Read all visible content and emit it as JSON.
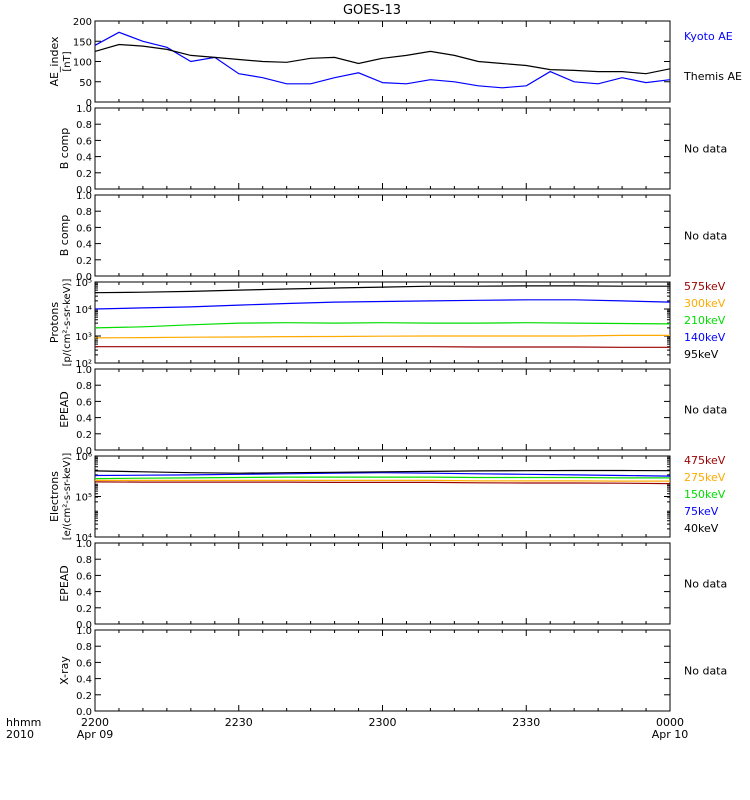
{
  "title": "GOES-13",
  "time_axis": {
    "ticks": [
      "2200",
      "2230",
      "2300",
      "2330",
      "0000"
    ],
    "date_left": "Apr 09",
    "date_right": "Apr 10",
    "unit_label": "hhmm",
    "year_label": "2010"
  },
  "colors": {
    "black": "#000000",
    "blue": "#0000ff",
    "green": "#00dd00",
    "orange": "#ffaa00",
    "darkred": "#990000"
  },
  "no_data_label": "No data",
  "chart_data": [
    {
      "type": "line",
      "panel": "ae",
      "ylabel": "AE_index\n[nT]",
      "ylim": [
        0,
        200
      ],
      "yticks": [
        "0",
        "50",
        "100",
        "150",
        "200"
      ],
      "x_minutes": [
        0,
        5,
        10,
        15,
        20,
        25,
        30,
        35,
        40,
        45,
        50,
        55,
        60,
        65,
        70,
        75,
        80,
        85,
        90,
        95,
        100,
        105,
        110,
        115,
        120
      ],
      "series": [
        {
          "name": "Kyoto AE",
          "color": "blue",
          "values": [
            140,
            172,
            150,
            135,
            100,
            110,
            70,
            60,
            45,
            45,
            60,
            72,
            48,
            45,
            55,
            50,
            40,
            35,
            40,
            75,
            50,
            45,
            60,
            48,
            55
          ]
        },
        {
          "name": "Themis AE",
          "color": "black",
          "values": [
            125,
            142,
            138,
            130,
            115,
            110,
            105,
            100,
            98,
            108,
            110,
            95,
            108,
            115,
            125,
            115,
            100,
            95,
            90,
            80,
            78,
            75,
            75,
            70,
            82
          ]
        }
      ]
    },
    {
      "type": "line",
      "panel": "bcomp1",
      "ylabel": "B comp",
      "ylim": [
        0,
        1
      ],
      "yticks": [
        "0.0",
        "0.2",
        "0.4",
        "0.6",
        "0.8",
        "1.0"
      ],
      "no_data": true
    },
    {
      "type": "line",
      "panel": "bcomp2",
      "ylabel": "B comp",
      "ylim": [
        0,
        1
      ],
      "yticks": [
        "0.0",
        "0.2",
        "0.4",
        "0.6",
        "0.8",
        "1.0"
      ],
      "no_data": true
    },
    {
      "type": "line",
      "panel": "protons",
      "scale": "log",
      "ylabel": "Protons\n[p/(cm²-s-sr-keV)]",
      "ylim": [
        100,
        100000
      ],
      "yticks": [
        "10²",
        "10³",
        "10⁴",
        "10⁵"
      ],
      "x_minutes": [
        0,
        10,
        20,
        30,
        40,
        50,
        60,
        70,
        80,
        90,
        100,
        110,
        120
      ],
      "series": [
        {
          "name": "575keV",
          "color": "darkred",
          "values": [
            400,
            400,
            400,
            400,
            400,
            400,
            400,
            400,
            390,
            390,
            390,
            380,
            380
          ]
        },
        {
          "name": "300keV",
          "color": "orange",
          "values": [
            850,
            870,
            900,
            920,
            950,
            960,
            980,
            1000,
            1000,
            1000,
            1000,
            1050,
            1050
          ]
        },
        {
          "name": "210keV",
          "color": "green",
          "values": [
            2000,
            2200,
            2600,
            3000,
            3100,
            3000,
            3100,
            3000,
            3000,
            3100,
            3000,
            2900,
            2800
          ]
        },
        {
          "name": "140keV",
          "color": "blue",
          "values": [
            10000,
            11000,
            12000,
            14000,
            16000,
            18000,
            19000,
            20000,
            21000,
            22000,
            22000,
            20000,
            18000
          ]
        },
        {
          "name": "95keV",
          "color": "black",
          "values": [
            40000,
            42000,
            45000,
            50000,
            55000,
            60000,
            65000,
            70000,
            70000,
            72000,
            72000,
            70000,
            70000
          ]
        }
      ]
    },
    {
      "type": "line",
      "panel": "epead1",
      "ylabel": "EPEAD",
      "ylim": [
        0,
        1
      ],
      "yticks": [
        "0.0",
        "0.2",
        "0.4",
        "0.6",
        "0.8",
        "1.0"
      ],
      "no_data": true
    },
    {
      "type": "line",
      "panel": "electrons",
      "scale": "log",
      "ylabel": "Electrons\n[e/(cm²-s-sr-keV)]",
      "ylim": [
        1000,
        1000000
      ],
      "yticks": [
        "10⁴",
        "10⁵",
        "10⁶"
      ],
      "x_minutes": [
        0,
        10,
        20,
        30,
        40,
        50,
        60,
        70,
        80,
        90,
        100,
        110,
        120
      ],
      "series": [
        {
          "name": "475keV",
          "color": "darkred",
          "values": [
            110000,
            108000,
            108000,
            108000,
            108000,
            105000,
            105000,
            105000,
            102000,
            100000,
            100000,
            98000,
            95000
          ]
        },
        {
          "name": "275keV",
          "color": "orange",
          "values": [
            125000,
            125000,
            125000,
            125000,
            125000,
            125000,
            125000,
            125000,
            120000,
            120000,
            120000,
            118000,
            118000
          ]
        },
        {
          "name": "150keV",
          "color": "green",
          "values": [
            145000,
            150000,
            155000,
            160000,
            165000,
            165000,
            165000,
            165000,
            160000,
            160000,
            160000,
            155000,
            155000
          ]
        },
        {
          "name": "75keV",
          "color": "blue",
          "values": [
            190000,
            195000,
            200000,
            210000,
            220000,
            230000,
            240000,
            230000,
            220000,
            210000,
            200000,
            190000,
            180000
          ]
        },
        {
          "name": "40keV",
          "color": "black",
          "values": [
            280000,
            260000,
            240000,
            230000,
            240000,
            250000,
            260000,
            270000,
            280000,
            285000,
            290000,
            290000,
            285000
          ]
        }
      ]
    },
    {
      "type": "line",
      "panel": "epead2",
      "ylabel": "EPEAD",
      "ylim": [
        0,
        1
      ],
      "yticks": [
        "0.0",
        "0.2",
        "0.4",
        "0.6",
        "0.8",
        "1.0"
      ],
      "no_data": true
    },
    {
      "type": "line",
      "panel": "xray",
      "ylabel": "X-ray",
      "ylim": [
        0,
        1
      ],
      "yticks": [
        "0.0",
        "0.2",
        "0.4",
        "0.6",
        "0.8",
        "1.0"
      ],
      "no_data": true
    }
  ]
}
